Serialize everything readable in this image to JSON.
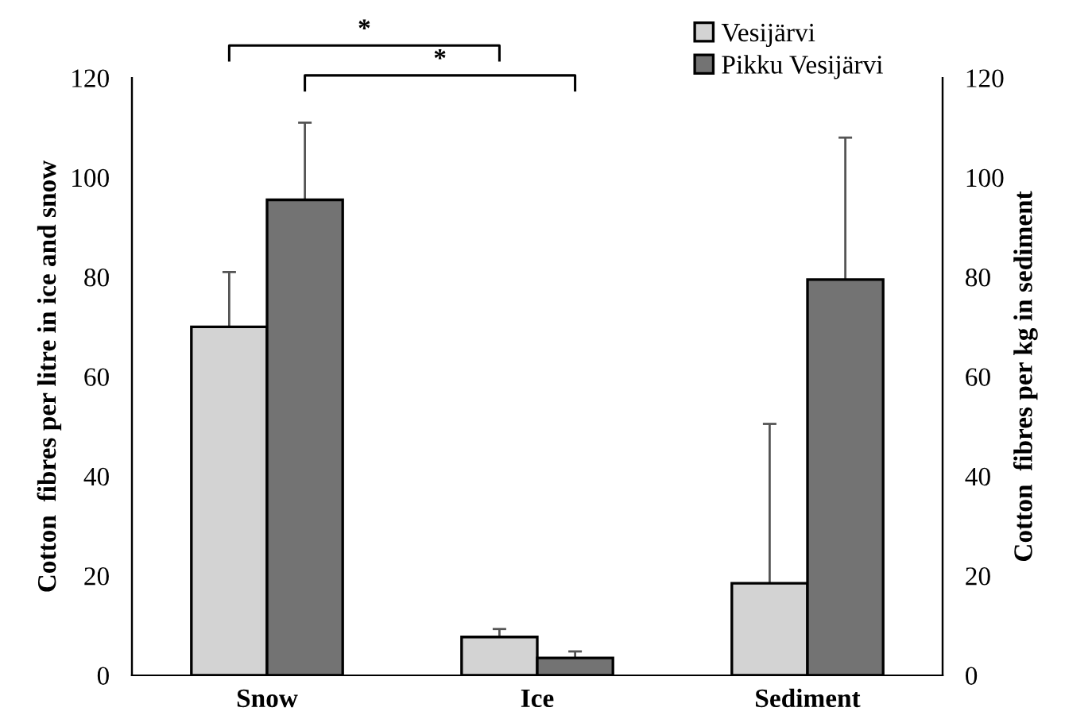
{
  "chart_data": {
    "type": "bar",
    "categories": [
      "Snow",
      "Ice",
      "Sediment"
    ],
    "ylabel": "Cotton  fibres per litre in ice and snow",
    "y2label": "Cotton  fibres per kg in sediment",
    "ylim": [
      0,
      120
    ],
    "yticks": [
      0,
      20,
      40,
      60,
      80,
      100,
      120
    ],
    "y2lim": [
      0,
      120
    ],
    "y2ticks": [
      0,
      20,
      40,
      60,
      80,
      100,
      120
    ],
    "series": [
      {
        "name": "Vesijärvi",
        "color": "#d3d3d3",
        "values": [
          70,
          7.7,
          18.5
        ],
        "errors": [
          [
            70,
            81
          ],
          [
            7.7,
            9.3
          ],
          [
            18.5,
            50.5
          ]
        ]
      },
      {
        "name": "Pikku Vesijärvi",
        "color": "#737373",
        "values": [
          95.5,
          3.5,
          79.5
        ],
        "errors": [
          [
            95.5,
            111
          ],
          [
            3.5,
            4.8
          ],
          [
            79.5,
            108
          ]
        ]
      }
    ],
    "annotations": [
      "*",
      "*"
    ],
    "legend": "top right",
    "grid": false
  }
}
